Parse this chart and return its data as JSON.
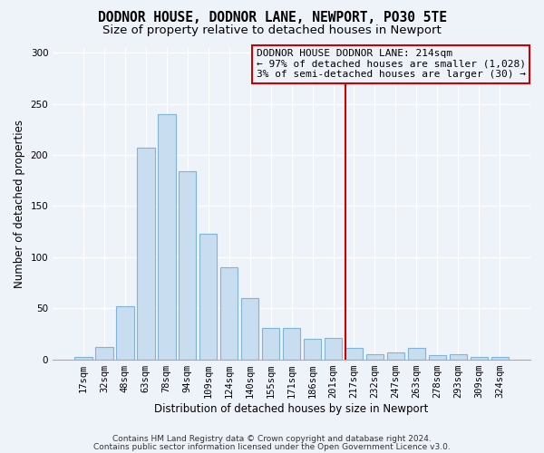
{
  "title1": "DODNOR HOUSE, DODNOR LANE, NEWPORT, PO30 5TE",
  "title2": "Size of property relative to detached houses in Newport",
  "xlabel": "Distribution of detached houses by size in Newport",
  "ylabel": "Number of detached properties",
  "bar_labels": [
    "17sqm",
    "32sqm",
    "48sqm",
    "63sqm",
    "78sqm",
    "94sqm",
    "109sqm",
    "124sqm",
    "140sqm",
    "155sqm",
    "171sqm",
    "186sqm",
    "201sqm",
    "217sqm",
    "232sqm",
    "247sqm",
    "263sqm",
    "278sqm",
    "293sqm",
    "309sqm",
    "324sqm"
  ],
  "bar_values": [
    2,
    12,
    52,
    207,
    240,
    184,
    123,
    90,
    60,
    31,
    31,
    20,
    21,
    11,
    5,
    7,
    11,
    4,
    5,
    2,
    2
  ],
  "bar_color": "#c9ddf0",
  "bar_edgecolor": "#7fb3d8",
  "vline_x": 12.575,
  "vline_color": "#cc0000",
  "annotation_lines": [
    "DODNOR HOUSE DODNOR LANE: 214sqm",
    "← 97% of detached houses are smaller (1,028)",
    "3% of semi-detached houses are larger (30) →"
  ],
  "annotation_box_edgecolor": "#cc0000",
  "background_color": "#eef2f9",
  "ylim": [
    0,
    305
  ],
  "footer_line1": "Contains HM Land Registry data © Crown copyright and database right 2024.",
  "footer_line2": "Contains public sector information licensed under the Open Government Licence v3.0.",
  "title1_fontsize": 10.5,
  "title2_fontsize": 9.5,
  "xlabel_fontsize": 8.5,
  "ylabel_fontsize": 8.5,
  "tick_fontsize": 7.5,
  "annotation_fontsize": 8.0,
  "footer_fontsize": 6.5
}
